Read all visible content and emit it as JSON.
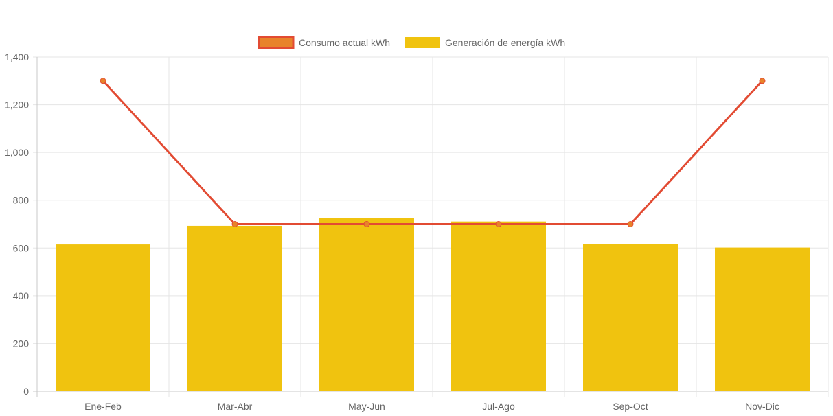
{
  "chart_data": {
    "type": "bar",
    "categories": [
      "Ene-Feb",
      "Mar-Abr",
      "May-Jun",
      "Jul-Ago",
      "Sep-Oct",
      "Nov-Dic"
    ],
    "series": [
      {
        "name": "Consumo actual kWh",
        "type": "line",
        "values": [
          1300,
          700,
          700,
          700,
          700,
          1300
        ]
      },
      {
        "name": "Generación de energía kWh",
        "type": "bar",
        "values": [
          615,
          693,
          727,
          711,
          618,
          602
        ]
      }
    ],
    "ylim": [
      0,
      1400
    ],
    "yticks": [
      0,
      200,
      400,
      600,
      800,
      1000,
      1200,
      1400
    ],
    "ytick_labels": [
      "0",
      "200",
      "400",
      "600",
      "800",
      "1,000",
      "1,200",
      "1,400"
    ],
    "grid": true,
    "legend": "top-center",
    "colors": {
      "line": "#e24b33",
      "line_point": "#e8832a",
      "bar": "#f0c30f",
      "grid": "#e5e5e5",
      "axis": "#c8c8c8"
    }
  }
}
